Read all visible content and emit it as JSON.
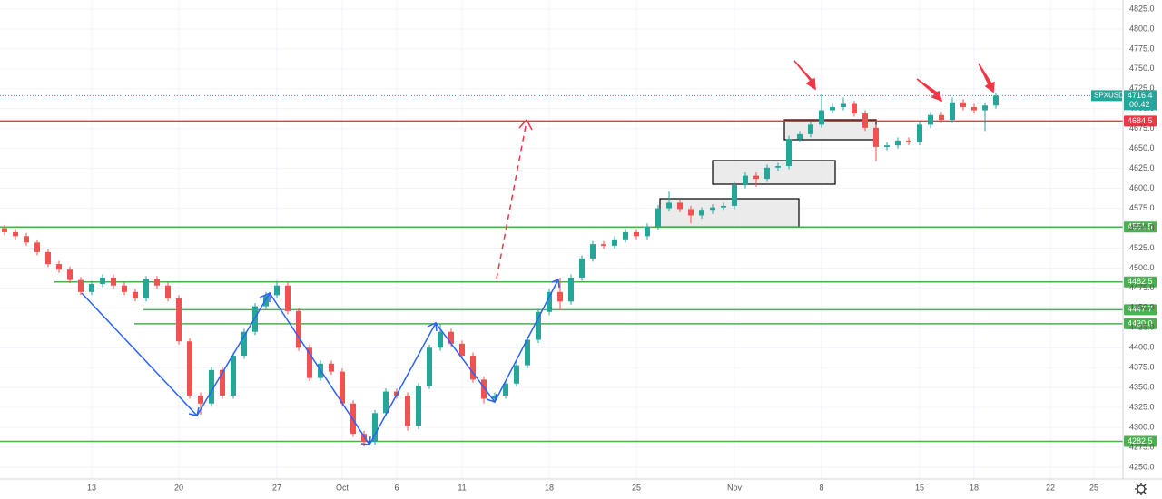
{
  "chart_data": {
    "type": "candlestick",
    "symbol": "SPXUSD",
    "countdown": "00:42",
    "up_color": "#26a69a",
    "down_color": "#ef5350",
    "grid": true,
    "ylim": [
      4250,
      4825
    ],
    "yticks": [
      {
        "value": 4250,
        "label": "4250.0"
      },
      {
        "value": 4275,
        "label": "4275.0"
      },
      {
        "value": 4300,
        "label": "4300.0"
      },
      {
        "value": 4325,
        "label": "4325.0"
      },
      {
        "value": 4350,
        "label": "4350.0"
      },
      {
        "value": 4375,
        "label": "4375.0"
      },
      {
        "value": 4400,
        "label": "4400.0"
      },
      {
        "value": 4425,
        "label": "4425.0"
      },
      {
        "value": 4450,
        "label": "4450.0"
      },
      {
        "value": 4475,
        "label": "4475.0"
      },
      {
        "value": 4500,
        "label": "4500.0"
      },
      {
        "value": 4525,
        "label": "4525.0"
      },
      {
        "value": 4550,
        "label": "4550.0"
      },
      {
        "value": 4575,
        "label": "4575.0"
      },
      {
        "value": 4600,
        "label": "4600.0"
      },
      {
        "value": 4625,
        "label": "4625.0"
      },
      {
        "value": 4650,
        "label": "4650.0"
      },
      {
        "value": 4675,
        "label": "4675.0"
      },
      {
        "value": 4700,
        "label": "4700.0"
      },
      {
        "value": 4725,
        "label": "4725.0"
      },
      {
        "value": 4750,
        "label": "4750.0"
      },
      {
        "value": 4775,
        "label": "4775.0"
      },
      {
        "value": 4800,
        "label": "4800.0"
      },
      {
        "value": 4825,
        "label": "4825.0"
      }
    ],
    "categories": [
      null,
      null,
      null,
      null,
      null,
      null,
      null,
      null,
      "13",
      null,
      null,
      null,
      null,
      null,
      null,
      null,
      "20",
      null,
      null,
      null,
      null,
      null,
      null,
      null,
      null,
      "27",
      null,
      null,
      null,
      null,
      null,
      "Oct",
      null,
      null,
      null,
      null,
      "6",
      null,
      null,
      null,
      null,
      null,
      "11",
      null,
      null,
      null,
      null,
      null,
      null,
      null,
      "18",
      null,
      null,
      null,
      null,
      null,
      null,
      null,
      "25",
      null,
      null,
      null,
      null,
      null,
      null,
      null,
      null,
      "Nov",
      null,
      null,
      null,
      null,
      null,
      null,
      null,
      "8",
      null,
      null,
      null,
      null,
      null,
      null,
      null,
      null,
      "15",
      null,
      null,
      null,
      null,
      "18",
      null,
      null,
      null,
      null,
      null,
      null,
      "22",
      null,
      null,
      null,
      "25"
    ],
    "open": [
      4550,
      4545,
      4540,
      4532,
      4520,
      4505,
      4498,
      4485,
      4470,
      4480,
      4488,
      4478,
      4470,
      4462,
      4486,
      4478,
      4462,
      4408,
      4340,
      4330,
      4372,
      4340,
      4390,
      4420,
      4452,
      4466,
      4478,
      4446,
      4400,
      4362,
      4380,
      4370,
      4330,
      4292,
      4282,
      4318,
      4345,
      4340,
      4302,
      4352,
      4400,
      4420,
      4405,
      4390,
      4360,
      4336,
      4340,
      4355,
      4378,
      4410,
      4445,
      4470,
      4458,
      4488,
      4512,
      4530,
      4528,
      4536,
      4545,
      4540,
      4552,
      4575,
      4582,
      4574,
      4566,
      4572,
      4576,
      4578,
      4604,
      4616,
      4612,
      4626,
      4628,
      4662,
      4668,
      4680,
      4698,
      4702,
      4706,
      4694,
      4676,
      4652,
      4654,
      4660,
      4658,
      4680,
      4692,
      4686,
      4708,
      4702,
      4698,
      4704,
      null,
      null,
      null,
      null,
      null,
      null,
      null,
      null,
      null
    ],
    "high": [
      4554,
      4549,
      4544,
      4536,
      4524,
      4509,
      4502,
      4489,
      4484,
      4492,
      4492,
      4482,
      4474,
      4490,
      4490,
      4482,
      4466,
      4412,
      4344,
      4376,
      4376,
      4394,
      4424,
      4456,
      4470,
      4484,
      4482,
      4450,
      4404,
      4384,
      4384,
      4374,
      4334,
      4296,
      4322,
      4349,
      4349,
      4344,
      4356,
      4404,
      4430,
      4424,
      4409,
      4394,
      4364,
      4344,
      4359,
      4382,
      4414,
      4449,
      4474,
      4488,
      4492,
      4516,
      4534,
      4534,
      4540,
      4549,
      4549,
      4556,
      4579,
      4596,
      4586,
      4578,
      4576,
      4580,
      4582,
      4608,
      4620,
      4620,
      4630,
      4632,
      4666,
      4672,
      4684,
      4718,
      4706,
      4714,
      4710,
      4698,
      4680,
      4658,
      4664,
      4664,
      4684,
      4696,
      4696,
      4714,
      4712,
      4706,
      4708,
      4720,
      null,
      null,
      null,
      null,
      null,
      null,
      null,
      null,
      null
    ],
    "low": [
      4541,
      4536,
      4528,
      4516,
      4501,
      4494,
      4481,
      4466,
      4466,
      4476,
      4474,
      4466,
      4458,
      4458,
      4474,
      4458,
      4404,
      4336,
      4316,
      4326,
      4336,
      4336,
      4386,
      4416,
      4448,
      4462,
      4442,
      4396,
      4358,
      4358,
      4366,
      4326,
      4288,
      4276,
      4278,
      4314,
      4336,
      4296,
      4298,
      4348,
      4396,
      4401,
      4386,
      4356,
      4330,
      4332,
      4336,
      4351,
      4374,
      4406,
      4441,
      4448,
      4454,
      4484,
      4508,
      4524,
      4524,
      4532,
      4536,
      4536,
      4548,
      4571,
      4570,
      4556,
      4562,
      4568,
      4572,
      4574,
      4600,
      4602,
      4608,
      4622,
      4624,
      4658,
      4664,
      4676,
      4694,
      4698,
      4690,
      4672,
      4634,
      4648,
      4650,
      4654,
      4654,
      4676,
      4682,
      4682,
      4698,
      4694,
      4672,
      4700,
      null,
      null,
      null,
      null,
      null,
      null,
      null,
      null,
      null
    ],
    "close": [
      4545,
      4540,
      4532,
      4520,
      4505,
      4498,
      4485,
      4470,
      4480,
      4488,
      4478,
      4470,
      4462,
      4486,
      4478,
      4462,
      4408,
      4340,
      4330,
      4372,
      4340,
      4390,
      4420,
      4452,
      4466,
      4478,
      4446,
      4400,
      4362,
      4380,
      4370,
      4330,
      4292,
      4282,
      4318,
      4345,
      4340,
      4302,
      4352,
      4400,
      4420,
      4405,
      4390,
      4360,
      4336,
      4340,
      4355,
      4378,
      4410,
      4445,
      4470,
      4458,
      4488,
      4512,
      4530,
      4528,
      4536,
      4545,
      4540,
      4552,
      4575,
      4582,
      4574,
      4566,
      4572,
      4576,
      4578,
      4604,
      4616,
      4612,
      4626,
      4628,
      4662,
      4668,
      4680,
      4698,
      4702,
      4706,
      4694,
      4676,
      4652,
      4654,
      4660,
      4658,
      4680,
      4692,
      4686,
      4708,
      4702,
      4698,
      4704,
      4716.4,
      null,
      null,
      null,
      null,
      null,
      null,
      null,
      null,
      null
    ],
    "levels": [
      {
        "value": 4684.5,
        "color": "#f23645"
      },
      {
        "value": 4551.5,
        "color": "#4caf50"
      },
      {
        "value": 4482.5,
        "color": "#4caf50"
      },
      {
        "value": 4447.7,
        "color": "#4caf50"
      },
      {
        "value": 4430,
        "label": "4430.0",
        "color": "#4caf50"
      },
      {
        "value": 4282.5,
        "color": "#4caf50"
      }
    ]
  }
}
